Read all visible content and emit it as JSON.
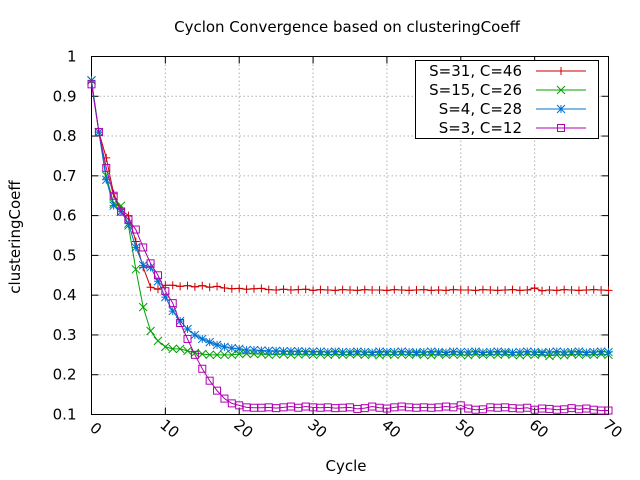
{
  "chart_data": {
    "type": "line",
    "title": "Cyclon Convergence based on clusteringCoeff",
    "xlabel": "Cycle",
    "ylabel": "clusteringCoeff",
    "xlim": [
      0,
      70
    ],
    "ylim": [
      0.1,
      1.0
    ],
    "xticks": [
      "0",
      "10",
      "20",
      "30",
      "40",
      "50",
      "60",
      "70"
    ],
    "yticks": [
      "0.1",
      "0.2",
      "0.3",
      "0.4",
      "0.5",
      "0.6",
      "0.7",
      "0.8",
      "0.9",
      "1"
    ],
    "grid": true,
    "legend_position": "top-right",
    "series": [
      {
        "name": "S=31, C=46",
        "color": "#cc0000",
        "marker": "plus",
        "x": [
          0,
          1,
          2,
          3,
          4,
          5,
          6,
          7,
          8,
          9,
          10,
          11,
          12,
          13,
          14,
          15,
          16,
          17,
          18,
          19,
          20,
          21,
          22,
          23,
          24,
          25,
          26,
          27,
          28,
          29,
          30,
          31,
          32,
          33,
          34,
          35,
          36,
          37,
          38,
          39,
          40,
          41,
          42,
          43,
          44,
          45,
          46,
          47,
          48,
          49,
          50,
          51,
          52,
          53,
          54,
          55,
          56,
          57,
          58,
          59,
          60,
          61,
          62,
          63,
          64,
          65,
          66,
          67,
          68,
          69,
          70
        ],
        "y": [
          0.935,
          0.81,
          0.745,
          0.655,
          0.615,
          0.6,
          0.535,
          0.47,
          0.42,
          0.415,
          0.425,
          0.425,
          0.422,
          0.424,
          0.421,
          0.424,
          0.42,
          0.422,
          0.418,
          0.416,
          0.417,
          0.415,
          0.416,
          0.417,
          0.414,
          0.413,
          0.415,
          0.413,
          0.414,
          0.415,
          0.412,
          0.414,
          0.413,
          0.412,
          0.414,
          0.413,
          0.412,
          0.414,
          0.413,
          0.413,
          0.412,
          0.414,
          0.413,
          0.412,
          0.413,
          0.414,
          0.412,
          0.413,
          0.412,
          0.414,
          0.413,
          0.413,
          0.412,
          0.414,
          0.413,
          0.412,
          0.413,
          0.414,
          0.412,
          0.413,
          0.418,
          0.411,
          0.413,
          0.412,
          0.414,
          0.413,
          0.412,
          0.413,
          0.414,
          0.413,
          0.412
        ]
      },
      {
        "name": "S=15, C=26",
        "color": "#00a000",
        "marker": "x",
        "x": [
          0,
          1,
          2,
          3,
          4,
          5,
          6,
          7,
          8,
          9,
          10,
          11,
          12,
          13,
          14,
          15,
          16,
          17,
          18,
          19,
          20,
          21,
          22,
          23,
          24,
          25,
          26,
          27,
          28,
          29,
          30,
          31,
          32,
          33,
          34,
          35,
          36,
          37,
          38,
          39,
          40,
          41,
          42,
          43,
          44,
          45,
          46,
          47,
          48,
          49,
          50,
          51,
          52,
          53,
          54,
          55,
          56,
          57,
          58,
          59,
          60,
          61,
          62,
          63,
          64,
          65,
          66,
          67,
          68,
          69,
          70
        ],
        "y": [
          0.94,
          0.81,
          0.7,
          0.63,
          0.625,
          0.575,
          0.465,
          0.37,
          0.31,
          0.285,
          0.27,
          0.265,
          0.265,
          0.26,
          0.255,
          0.252,
          0.25,
          0.25,
          0.25,
          0.25,
          0.252,
          0.253,
          0.252,
          0.252,
          0.25,
          0.251,
          0.252,
          0.25,
          0.251,
          0.252,
          0.25,
          0.251,
          0.25,
          0.252,
          0.25,
          0.251,
          0.252,
          0.25,
          0.251,
          0.249,
          0.252,
          0.25,
          0.251,
          0.25,
          0.252,
          0.25,
          0.249,
          0.252,
          0.25,
          0.251,
          0.25,
          0.249,
          0.252,
          0.25,
          0.251,
          0.25,
          0.252,
          0.25,
          0.249,
          0.251,
          0.25,
          0.252,
          0.247,
          0.25,
          0.249,
          0.252,
          0.25,
          0.251,
          0.25,
          0.252,
          0.25
        ]
      },
      {
        "name": "S=4, C=28",
        "color": "#0070d0",
        "marker": "star",
        "x": [
          0,
          1,
          2,
          3,
          4,
          5,
          6,
          7,
          8,
          9,
          10,
          11,
          12,
          13,
          14,
          15,
          16,
          17,
          18,
          19,
          20,
          21,
          22,
          23,
          24,
          25,
          26,
          27,
          28,
          29,
          30,
          31,
          32,
          33,
          34,
          35,
          36,
          37,
          38,
          39,
          40,
          41,
          42,
          43,
          44,
          45,
          46,
          47,
          48,
          49,
          50,
          51,
          52,
          53,
          54,
          55,
          56,
          57,
          58,
          59,
          60,
          61,
          62,
          63,
          64,
          65,
          66,
          67,
          68,
          69,
          70
        ],
        "y": [
          0.94,
          0.81,
          0.69,
          0.625,
          0.61,
          0.58,
          0.52,
          0.475,
          0.47,
          0.435,
          0.395,
          0.36,
          0.335,
          0.315,
          0.3,
          0.29,
          0.282,
          0.275,
          0.27,
          0.267,
          0.265,
          0.262,
          0.262,
          0.261,
          0.26,
          0.26,
          0.259,
          0.259,
          0.259,
          0.258,
          0.258,
          0.258,
          0.257,
          0.258,
          0.257,
          0.257,
          0.258,
          0.257,
          0.256,
          0.258,
          0.257,
          0.257,
          0.258,
          0.257,
          0.256,
          0.257,
          0.258,
          0.257,
          0.256,
          0.258,
          0.257,
          0.257,
          0.258,
          0.256,
          0.257,
          0.258,
          0.257,
          0.256,
          0.257,
          0.258,
          0.257,
          0.256,
          0.257,
          0.258,
          0.257,
          0.257,
          0.258,
          0.256,
          0.257,
          0.258,
          0.257
        ]
      },
      {
        "name": "S=3, C=12",
        "color": "#b000b0",
        "marker": "square",
        "x": [
          0,
          1,
          2,
          3,
          4,
          5,
          6,
          7,
          8,
          9,
          10,
          11,
          12,
          13,
          14,
          15,
          16,
          17,
          18,
          19,
          20,
          21,
          22,
          23,
          24,
          25,
          26,
          27,
          28,
          29,
          30,
          31,
          32,
          33,
          34,
          35,
          36,
          37,
          38,
          39,
          40,
          41,
          42,
          43,
          44,
          45,
          46,
          47,
          48,
          49,
          50,
          51,
          52,
          53,
          54,
          55,
          56,
          57,
          58,
          59,
          60,
          61,
          62,
          63,
          64,
          65,
          66,
          67,
          68,
          69,
          70
        ],
        "y": [
          0.93,
          0.81,
          0.72,
          0.65,
          0.61,
          0.59,
          0.565,
          0.52,
          0.48,
          0.45,
          0.41,
          0.38,
          0.33,
          0.29,
          0.25,
          0.215,
          0.185,
          0.16,
          0.14,
          0.128,
          0.123,
          0.118,
          0.117,
          0.117,
          0.118,
          0.116,
          0.118,
          0.12,
          0.117,
          0.12,
          0.118,
          0.117,
          0.118,
          0.116,
          0.117,
          0.118,
          0.114,
          0.116,
          0.12,
          0.117,
          0.115,
          0.118,
          0.12,
          0.118,
          0.117,
          0.118,
          0.117,
          0.118,
          0.12,
          0.118,
          0.123,
          0.115,
          0.112,
          0.113,
          0.118,
          0.117,
          0.118,
          0.116,
          0.115,
          0.117,
          0.112,
          0.115,
          0.114,
          0.112,
          0.113,
          0.116,
          0.113,
          0.115,
          0.112,
          0.11,
          0.11
        ]
      }
    ]
  }
}
